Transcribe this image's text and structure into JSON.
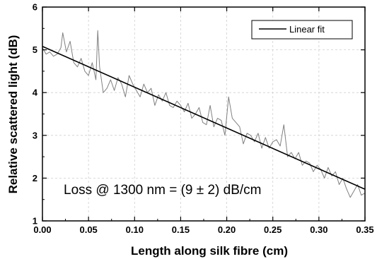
{
  "chart_data": {
    "type": "line",
    "xlabel": "Length along silk fibre (cm)",
    "ylabel": "Relative scattered light (dB)",
    "xlim": [
      0.0,
      0.35
    ],
    "ylim": [
      1,
      6
    ],
    "x_ticks": [
      "0.00",
      "0.05",
      "0.10",
      "0.15",
      "0.20",
      "0.25",
      "0.30",
      "0.35"
    ],
    "y_ticks": [
      "1",
      "2",
      "3",
      "4",
      "5",
      "6"
    ],
    "grid": true,
    "legend_position": "top-right",
    "annotation": "Loss @ 1300 nm = (9 ± 2) dB/cm",
    "colors": {
      "measured": "#808080",
      "fit": "#000000"
    },
    "series": [
      {
        "style": "noisy-line",
        "x": [
          0.0,
          0.004,
          0.008,
          0.012,
          0.016,
          0.02,
          0.022,
          0.026,
          0.03,
          0.034,
          0.038,
          0.042,
          0.046,
          0.05,
          0.054,
          0.058,
          0.06,
          0.062,
          0.066,
          0.07,
          0.074,
          0.078,
          0.082,
          0.086,
          0.09,
          0.094,
          0.098,
          0.102,
          0.106,
          0.11,
          0.114,
          0.118,
          0.122,
          0.126,
          0.13,
          0.134,
          0.138,
          0.142,
          0.146,
          0.15,
          0.154,
          0.158,
          0.162,
          0.166,
          0.17,
          0.174,
          0.178,
          0.182,
          0.186,
          0.19,
          0.194,
          0.198,
          0.202,
          0.206,
          0.21,
          0.214,
          0.218,
          0.222,
          0.226,
          0.23,
          0.234,
          0.238,
          0.242,
          0.246,
          0.25,
          0.254,
          0.258,
          0.262,
          0.266,
          0.27,
          0.274,
          0.278,
          0.282,
          0.286,
          0.29,
          0.294,
          0.298,
          0.302,
          0.306,
          0.31,
          0.314,
          0.318,
          0.322,
          0.326,
          0.33,
          0.334,
          0.338,
          0.342,
          0.346,
          0.35
        ],
        "values": [
          5.05,
          4.9,
          4.95,
          4.85,
          4.9,
          5.05,
          5.4,
          4.95,
          5.2,
          4.7,
          4.6,
          4.8,
          4.5,
          4.4,
          4.7,
          4.3,
          5.45,
          4.6,
          4.0,
          4.1,
          4.3,
          4.05,
          4.35,
          4.2,
          3.9,
          4.4,
          4.2,
          4.05,
          3.9,
          4.2,
          4.0,
          4.1,
          3.7,
          3.95,
          3.8,
          4.0,
          3.7,
          3.65,
          3.8,
          3.7,
          3.55,
          3.75,
          3.4,
          3.5,
          3.65,
          3.3,
          3.25,
          3.7,
          3.2,
          3.4,
          3.35,
          3.0,
          3.9,
          3.4,
          3.3,
          3.2,
          2.8,
          3.05,
          3.0,
          2.85,
          3.05,
          2.7,
          2.95,
          2.7,
          2.85,
          2.9,
          2.75,
          3.25,
          2.5,
          2.6,
          2.45,
          2.6,
          2.3,
          2.4,
          2.35,
          2.15,
          2.3,
          2.2,
          2.0,
          2.25,
          2.05,
          2.15,
          1.85,
          2.0,
          1.75,
          1.55,
          1.7,
          1.85,
          1.6,
          1.65
        ]
      },
      {
        "name": "Linear fit",
        "style": "line",
        "x": [
          0.0,
          0.35
        ],
        "values": [
          5.08,
          1.74
        ]
      }
    ]
  }
}
